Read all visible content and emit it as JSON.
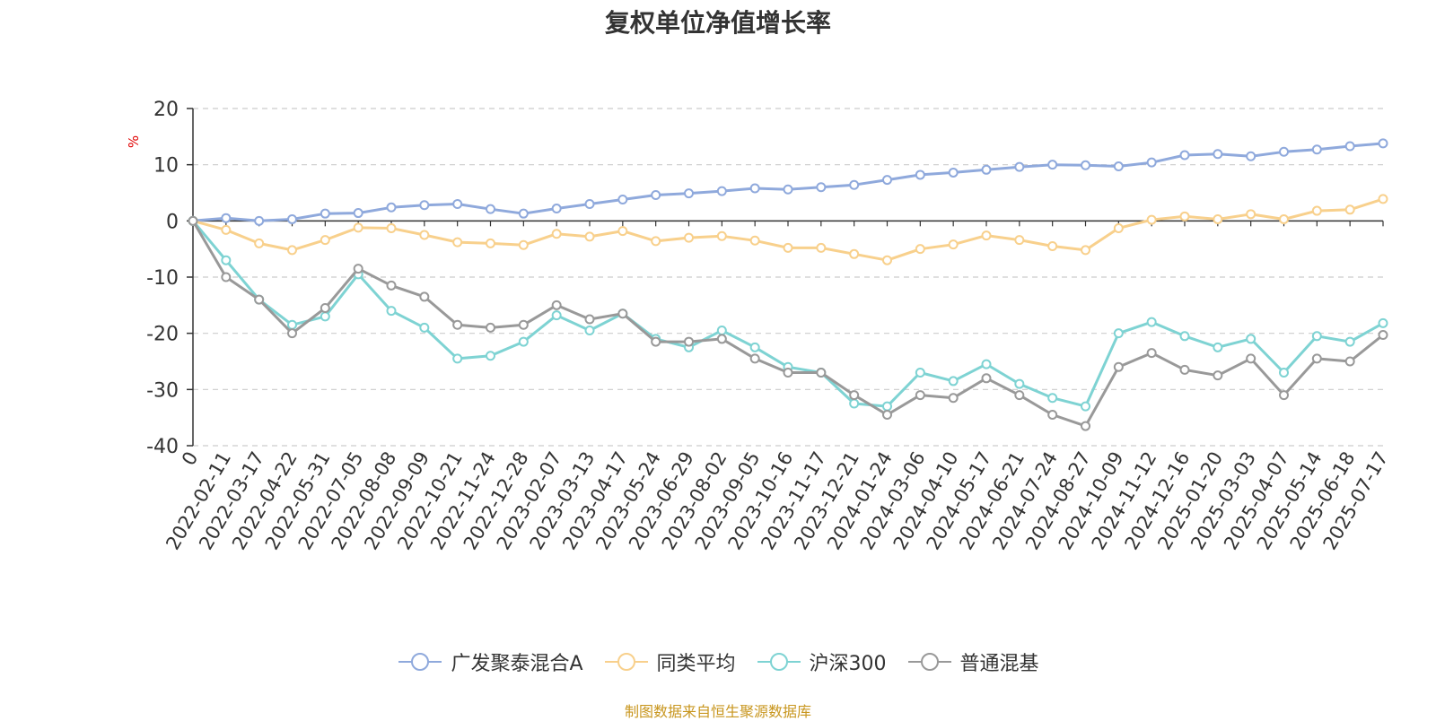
{
  "chart_data": {
    "type": "line",
    "title": "复权单位净值增长率",
    "ylabel": "%",
    "ylim": [
      -40,
      20
    ],
    "yticks": [
      20,
      10,
      0,
      -10,
      -20,
      -30,
      -40
    ],
    "grid": true,
    "legend_position": "bottom",
    "x_tick_labels": [
      "0",
      "2022-02-11",
      "2022-03-17",
      "2022-04-22",
      "2022-05-31",
      "2022-07-05",
      "2022-08-08",
      "2022-09-09",
      "2022-10-21",
      "2022-11-24",
      "2022-12-28",
      "2023-02-07",
      "2023-03-13",
      "2023-04-17",
      "2023-05-24",
      "2023-06-29",
      "2023-08-02",
      "2023-09-05",
      "2023-10-16",
      "2023-11-17",
      "2023-12-21",
      "2024-01-24",
      "2024-03-06",
      "2024-04-10",
      "2024-05-17",
      "2024-06-21",
      "2024-07-24",
      "2024-08-27",
      "2024-10-09",
      "2024-11-12",
      "2024-12-16",
      "2025-01-20",
      "2025-03-03",
      "2025-04-07",
      "2025-05-14",
      "2025-06-18",
      "2025-07-17"
    ],
    "series": [
      {
        "name": "广发聚泰混合A",
        "color": "#8fa9dc",
        "values": [
          0,
          0.5,
          0,
          0.3,
          1.3,
          1.4,
          2.4,
          2.8,
          3.0,
          2.1,
          1.3,
          2.2,
          3.0,
          3.8,
          4.6,
          4.9,
          5.3,
          5.8,
          5.6,
          6.0,
          6.4,
          7.3,
          8.2,
          8.6,
          9.1,
          9.6,
          10.0,
          9.9,
          9.7,
          10.4,
          11.7,
          11.9,
          11.5,
          12.3,
          12.7,
          13.3,
          13.8
        ]
      },
      {
        "name": "同类平均",
        "color": "#f8d08c",
        "values": [
          0,
          -1.6,
          -4.0,
          -5.2,
          -3.4,
          -1.2,
          -1.3,
          -2.5,
          -3.8,
          -4.0,
          -4.3,
          -2.3,
          -2.8,
          -1.8,
          -3.6,
          -3.0,
          -2.7,
          -3.5,
          -4.8,
          -4.8,
          -5.9,
          -7.0,
          -5.0,
          -4.2,
          -2.6,
          -3.4,
          -4.5,
          -5.2,
          -1.3,
          0.2,
          0.8,
          0.3,
          1.2,
          0.3,
          1.8,
          2.0,
          3.9
        ]
      },
      {
        "name": "沪深300",
        "color": "#7ed3d3",
        "values": [
          0,
          -7.0,
          -14.0,
          -18.5,
          -17.0,
          -9.5,
          -16.0,
          -19.0,
          -24.5,
          -24.0,
          -21.5,
          -16.8,
          -19.5,
          -16.5,
          -21.0,
          -22.5,
          -19.5,
          -22.5,
          -26.0,
          -27.0,
          -32.5,
          -33.0,
          -27.0,
          -28.5,
          -25.5,
          -29.0,
          -31.5,
          -33.0,
          -20.0,
          -18.0,
          -20.5,
          -22.5,
          -21.0,
          -27.0,
          -20.5,
          -21.5,
          -18.2
        ]
      },
      {
        "name": "普通混基",
        "color": "#999999",
        "values": [
          0,
          -10.0,
          -14.0,
          -20.0,
          -15.5,
          -8.5,
          -11.5,
          -13.5,
          -18.5,
          -19.0,
          -18.5,
          -15.0,
          -17.5,
          -16.5,
          -21.5,
          -21.5,
          -21.0,
          -24.5,
          -27.0,
          -27.0,
          -31.0,
          -34.5,
          -31.0,
          -31.5,
          -28.0,
          -31.0,
          -34.5,
          -36.5,
          -26.0,
          -23.5,
          -26.5,
          -27.5,
          -24.5,
          -31.0,
          -24.5,
          -25.0,
          -20.3
        ]
      }
    ]
  },
  "source_note": "制图数据来自恒生聚源数据库"
}
